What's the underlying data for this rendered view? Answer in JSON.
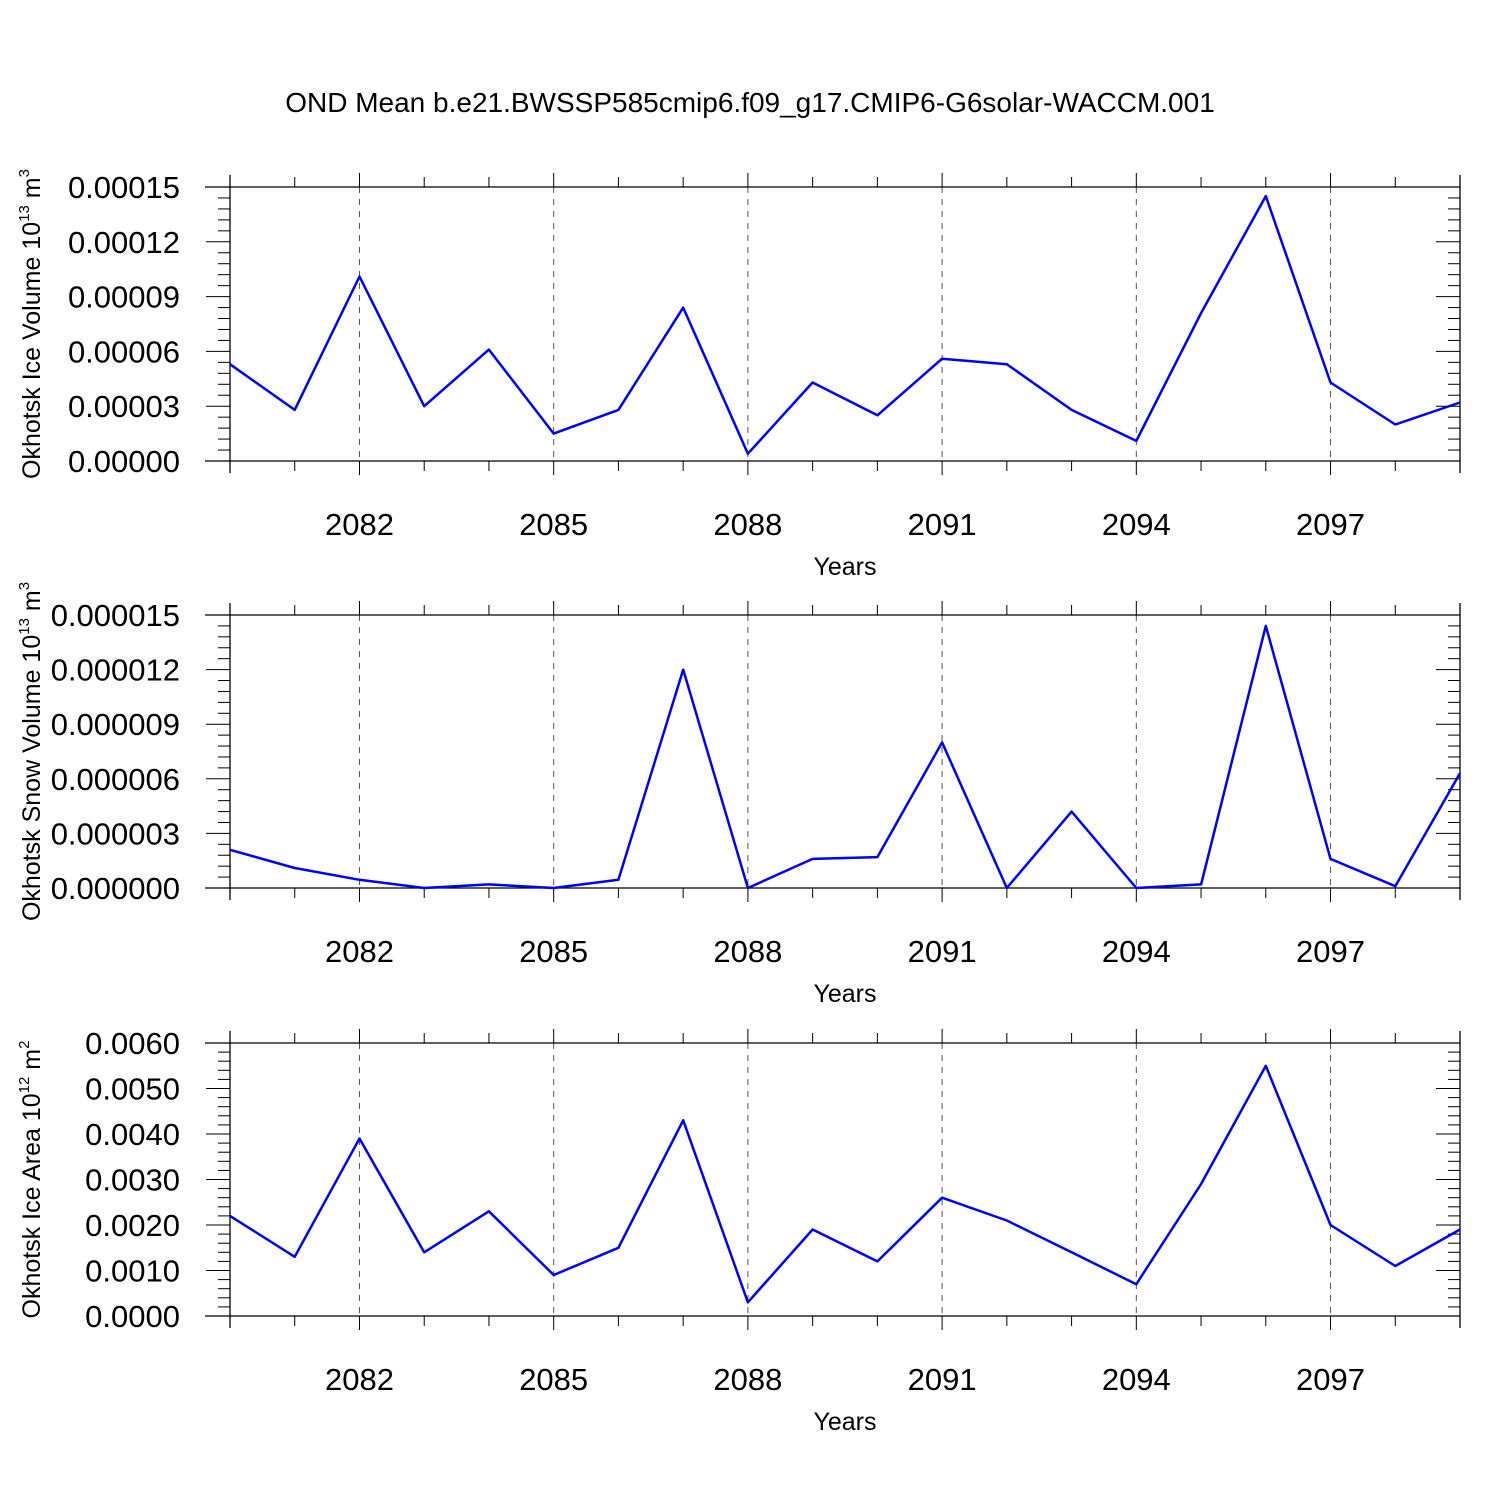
{
  "title": "OND Mean b.e21.BWSSP585cmip6.f09_g17.CMIP6-G6solar-WACCM.001",
  "line_color": "#0000ff",
  "chart_data": [
    {
      "type": "line",
      "xlabel": "Years",
      "ylabel": "Okhotsk Ice Volume 10",
      "ylabel_exp": "13",
      "ylabel_unit": "m",
      "ylabel_unit_exp": "3",
      "xlim": [
        2080,
        2099
      ],
      "ylim": [
        0.0,
        0.00015
      ],
      "x_ticks": [
        2082,
        2085,
        2088,
        2091,
        2094,
        2097
      ],
      "y_ticks": [
        0,
        3e-05,
        6e-05,
        9e-05,
        0.00012,
        0.00015
      ],
      "y_tick_labels": [
        "0.00000",
        "0.00003",
        "0.00006",
        "0.00009",
        "0.00012",
        "0.00015"
      ],
      "x": [
        2080,
        2081,
        2082,
        2083,
        2084,
        2085,
        2086,
        2087,
        2088,
        2089,
        2090,
        2091,
        2092,
        2093,
        2094,
        2095,
        2096,
        2097,
        2098,
        2099
      ],
      "values": [
        5.3e-05,
        2.8e-05,
        0.000101,
        3e-05,
        6.1e-05,
        1.5e-05,
        2.8e-05,
        8.4e-05,
        4e-06,
        4.3e-05,
        2.5e-05,
        5.6e-05,
        5.3e-05,
        2.8e-05,
        1.1e-05,
        8.1e-05,
        0.000145,
        4.3e-05,
        2e-05,
        3.2e-05
      ]
    },
    {
      "type": "line",
      "xlabel": "Years",
      "ylabel": "Okhotsk Snow Volume 10",
      "ylabel_exp": "13",
      "ylabel_unit": "m",
      "ylabel_unit_exp": "3",
      "xlim": [
        2080,
        2099
      ],
      "ylim": [
        0.0,
        1.5e-05
      ],
      "x_ticks": [
        2082,
        2085,
        2088,
        2091,
        2094,
        2097
      ],
      "y_ticks": [
        0,
        3e-06,
        6e-06,
        9e-06,
        1.2e-05,
        1.5e-05
      ],
      "y_tick_labels": [
        "0.000000",
        "0.000003",
        "0.000006",
        "0.000009",
        "0.000012",
        "0.000015"
      ],
      "x": [
        2080,
        2081,
        2082,
        2083,
        2084,
        2085,
        2086,
        2087,
        2088,
        2089,
        2090,
        2091,
        2092,
        2093,
        2094,
        2095,
        2096,
        2097,
        2098,
        2099
      ],
      "values": [
        2.1e-06,
        1.1e-06,
        4.5e-07,
        0.0,
        2e-07,
        0.0,
        4.5e-07,
        1.2e-05,
        0.0,
        1.6e-06,
        1.7e-06,
        8e-06,
        0.0,
        4.2e-06,
        0.0,
        2e-07,
        1.44e-05,
        1.6e-06,
        1e-07,
        6.3e-06
      ]
    },
    {
      "type": "line",
      "xlabel": "Years",
      "ylabel": "Okhotsk Ice Area 10",
      "ylabel_exp": "12",
      "ylabel_unit": "m",
      "ylabel_unit_exp": "2",
      "xlim": [
        2080,
        2099
      ],
      "ylim": [
        0.0,
        0.006
      ],
      "x_ticks": [
        2082,
        2085,
        2088,
        2091,
        2094,
        2097
      ],
      "y_ticks": [
        0,
        0.001,
        0.002,
        0.003,
        0.004,
        0.005,
        0.006
      ],
      "y_tick_labels": [
        "0.0000",
        "0.0010",
        "0.0020",
        "0.0030",
        "0.0040",
        "0.0050",
        "0.0060"
      ],
      "x": [
        2080,
        2081,
        2082,
        2083,
        2084,
        2085,
        2086,
        2087,
        2088,
        2089,
        2090,
        2091,
        2092,
        2093,
        2094,
        2095,
        2096,
        2097,
        2098,
        2099
      ],
      "values": [
        0.0022,
        0.0013,
        0.0039,
        0.0014,
        0.0023,
        0.0009,
        0.0015,
        0.0043,
        0.0003,
        0.0019,
        0.0012,
        0.0026,
        0.0021,
        0.0014,
        0.0007,
        0.0029,
        0.0055,
        0.002,
        0.0011,
        0.0019
      ]
    }
  ]
}
